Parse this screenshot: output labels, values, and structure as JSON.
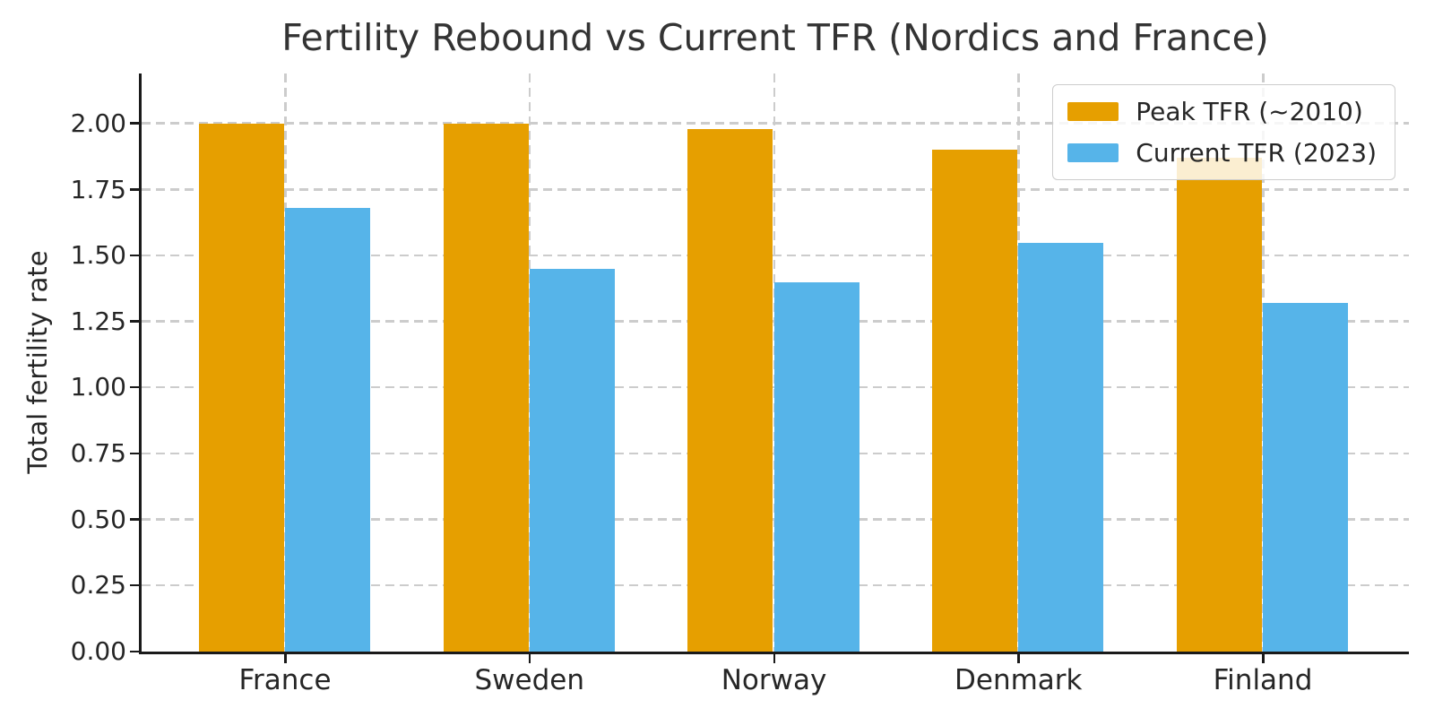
{
  "chart_data": {
    "type": "bar",
    "title": "Fertility Rebound vs Current TFR (Nordics and France)",
    "xlabel": "",
    "ylabel": "Total fertility rate",
    "categories": [
      "France",
      "Sweden",
      "Norway",
      "Denmark",
      "Finland"
    ],
    "series": [
      {
        "name": "Peak TFR (~2010)",
        "color": "#E69F00",
        "values": [
          2.0,
          2.0,
          1.98,
          1.9,
          1.87
        ]
      },
      {
        "name": "Current TFR (2023)",
        "color": "#56B4E9",
        "values": [
          1.68,
          1.45,
          1.4,
          1.55,
          1.32
        ]
      }
    ],
    "ylim": [
      0,
      2.19
    ],
    "yticks": [
      0.0,
      0.25,
      0.5,
      0.75,
      1.0,
      1.25,
      1.5,
      1.75,
      2.0
    ],
    "ytick_labels": [
      "0.00",
      "0.25",
      "0.50",
      "0.75",
      "1.00",
      "1.25",
      "1.50",
      "1.75",
      "2.00"
    ],
    "grid": true,
    "grid_style": "dashed",
    "legend_position": "upper right",
    "colors": {
      "peak_bar": "#E69F00",
      "current_bar": "#56B4E9",
      "grid": "#cccccc",
      "spine": "#1a1a1a",
      "text": "#262626",
      "title_text": "#333333",
      "background": "#ffffff"
    }
  }
}
